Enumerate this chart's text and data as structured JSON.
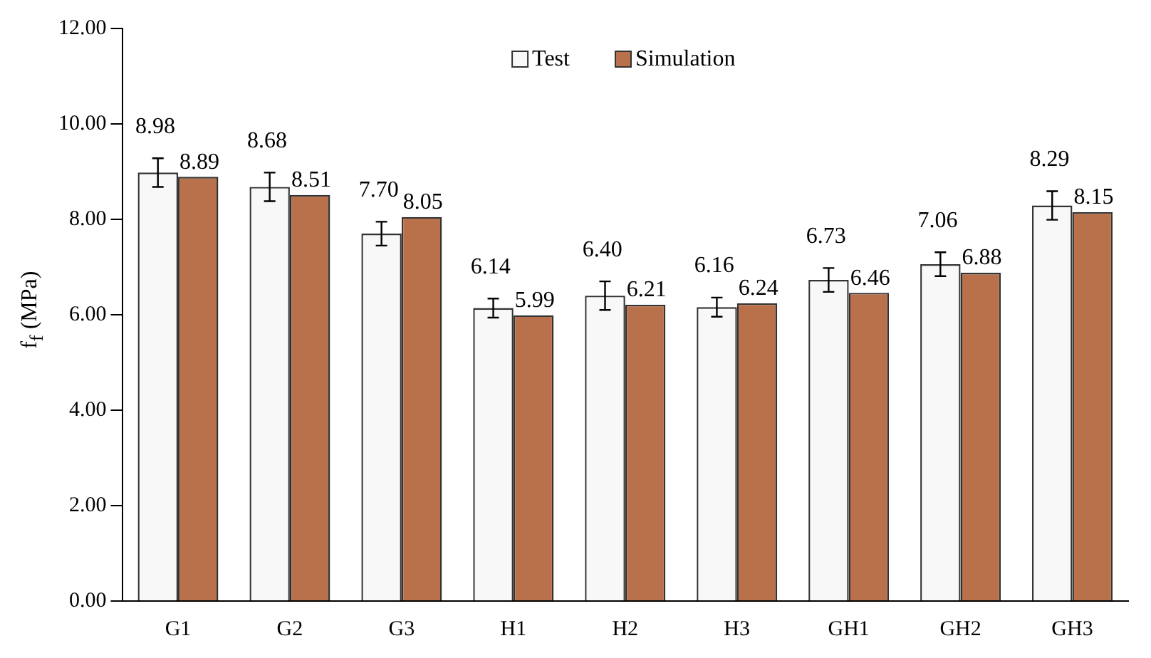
{
  "chart_data": {
    "type": "bar",
    "ylabel": "f$_{f}$ (MPa)",
    "categories": [
      "G1",
      "G2",
      "G3",
      "H1",
      "H2",
      "H3",
      "GH1",
      "GH2",
      "GH3"
    ],
    "series": [
      {
        "name": "Test",
        "color": "#f8f8f8",
        "values": [
          8.98,
          8.68,
          7.7,
          6.14,
          6.4,
          6.16,
          6.73,
          7.06,
          8.29
        ],
        "errors": [
          0.3,
          0.3,
          0.25,
          0.2,
          0.3,
          0.2,
          0.25,
          0.25,
          0.3
        ],
        "value_labels": [
          "8.98",
          "8.68",
          "7.70",
          "6.14",
          "6.40",
          "6.16",
          "6.73",
          "7.06",
          "8.29"
        ]
      },
      {
        "name": "Simulation",
        "color": "#b8714a",
        "values": [
          8.89,
          8.51,
          8.05,
          5.99,
          6.21,
          6.24,
          6.46,
          6.88,
          8.15
        ],
        "value_labels": [
          "8.89",
          "8.51",
          "8.05",
          "5.99",
          "6.21",
          "6.24",
          "6.46",
          "6.88",
          "8.15"
        ]
      }
    ],
    "ylim": [
      0,
      12
    ],
    "yticks": [
      {
        "value": 0,
        "label": "0.00"
      },
      {
        "value": 2,
        "label": "2.00"
      },
      {
        "value": 4,
        "label": "4.00"
      },
      {
        "value": 6,
        "label": "6.00"
      },
      {
        "value": 8,
        "label": "8.00"
      },
      {
        "value": 10,
        "label": "10.00"
      },
      {
        "value": 12,
        "label": "12.00"
      }
    ],
    "legend": "top",
    "grid": false
  }
}
